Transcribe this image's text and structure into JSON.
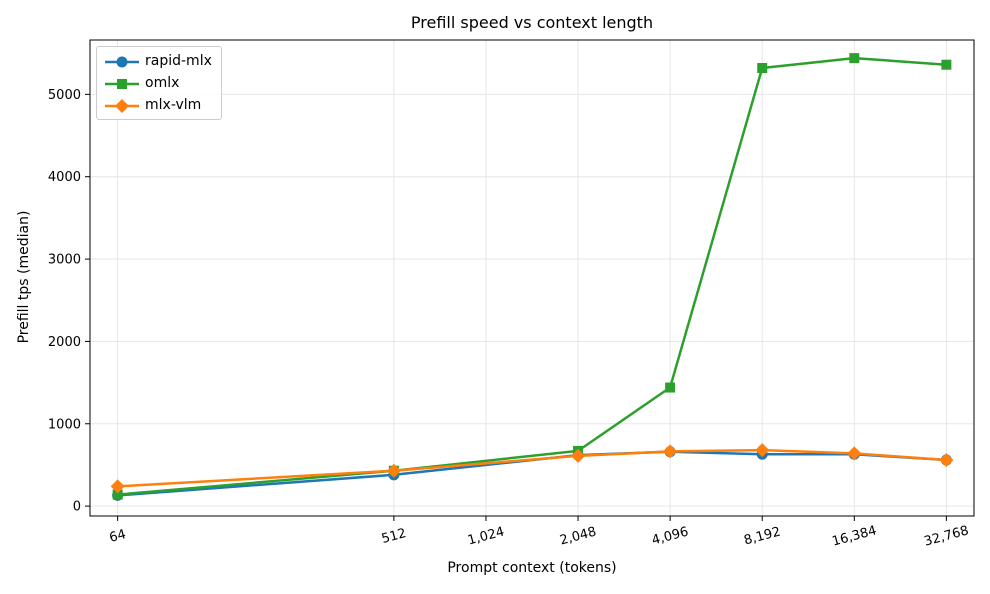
{
  "chart_data": {
    "type": "line",
    "title": "Prefill speed vs context length",
    "xlabel": "Prompt context (tokens)",
    "ylabel": "Prefill tps (median)",
    "x_scale": "log2",
    "x": [
      64,
      512,
      2048,
      4096,
      8192,
      16384,
      32768
    ],
    "x_ticks": [
      64,
      512,
      1024,
      2048,
      4096,
      8192,
      16384,
      32768
    ],
    "x_tick_labels": [
      "64",
      "512",
      "1,024",
      "2,048",
      "4,096",
      "8,192",
      "16,384",
      "32,768"
    ],
    "y_ticks": [
      0,
      1000,
      2000,
      3000,
      4000,
      5000
    ],
    "y_tick_labels": [
      "0",
      "1000",
      "2000",
      "3000",
      "4000",
      "5000"
    ],
    "ylim": [
      -120,
      5660
    ],
    "grid": true,
    "legend_position": "top-left",
    "series": [
      {
        "name": "rapid-mlx",
        "color": "#1f77b4",
        "marker": "circle",
        "values": [
          130,
          380,
          620,
          660,
          630,
          630,
          560
        ]
      },
      {
        "name": "omlx",
        "color": "#2ca02c",
        "marker": "square",
        "values": [
          140,
          430,
          670,
          1440,
          5320,
          5440,
          5360
        ]
      },
      {
        "name": "mlx-vlm",
        "color": "#ff7f0e",
        "marker": "diamond",
        "values": [
          240,
          430,
          610,
          665,
          680,
          640,
          560
        ]
      }
    ]
  }
}
